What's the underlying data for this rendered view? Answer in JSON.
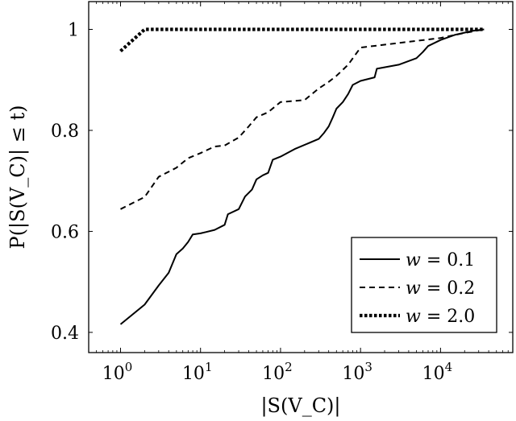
{
  "chart_data": {
    "type": "line",
    "xscale": "log",
    "xlim": [
      0.4,
      80000
    ],
    "ylim": [
      0.36,
      1.055
    ],
    "grid": false,
    "xlabel": "|S(V_C)|",
    "ylabel": "P(|S(V_C)| ≤ t)",
    "x_ticks": [
      {
        "value": 1,
        "base": "10",
        "exp": "0"
      },
      {
        "value": 10,
        "base": "10",
        "exp": "1"
      },
      {
        "value": 100,
        "base": "10",
        "exp": "2"
      },
      {
        "value": 1000,
        "base": "10",
        "exp": "3"
      },
      {
        "value": 10000,
        "base": "10",
        "exp": "4"
      }
    ],
    "y_ticks": [
      {
        "value": 0.4,
        "label": "0.4"
      },
      {
        "value": 0.6,
        "label": "0.6"
      },
      {
        "value": 0.8,
        "label": "0.8"
      },
      {
        "value": 1.0,
        "label": "1"
      }
    ],
    "legend": {
      "position": "bottom-right",
      "entries": [
        {
          "series": 0,
          "prefix": "w",
          "value": "= 0.1"
        },
        {
          "series": 1,
          "prefix": "w",
          "value": "= 0.2"
        },
        {
          "series": 2,
          "prefix": "w",
          "value": "= 2.0"
        }
      ]
    },
    "series": [
      {
        "name": "w = 0.1",
        "style": "solid",
        "points": [
          [
            1,
            0.416
          ],
          [
            2,
            0.455
          ],
          [
            3,
            0.493
          ],
          [
            4,
            0.518
          ],
          [
            5,
            0.555
          ],
          [
            6,
            0.566
          ],
          [
            7,
            0.579
          ],
          [
            8,
            0.594
          ],
          [
            10,
            0.596
          ],
          [
            15,
            0.603
          ],
          [
            20,
            0.613
          ],
          [
            22,
            0.634
          ],
          [
            30,
            0.644
          ],
          [
            36,
            0.669
          ],
          [
            44,
            0.683
          ],
          [
            50,
            0.703
          ],
          [
            60,
            0.711
          ],
          [
            70,
            0.716
          ],
          [
            80,
            0.742
          ],
          [
            100,
            0.748
          ],
          [
            150,
            0.763
          ],
          [
            300,
            0.783
          ],
          [
            350,
            0.795
          ],
          [
            400,
            0.808
          ],
          [
            450,
            0.826
          ],
          [
            500,
            0.843
          ],
          [
            600,
            0.856
          ],
          [
            700,
            0.872
          ],
          [
            800,
            0.89
          ],
          [
            1000,
            0.898
          ],
          [
            1500,
            0.905
          ],
          [
            1600,
            0.922
          ],
          [
            3000,
            0.93
          ],
          [
            5000,
            0.943
          ],
          [
            6000,
            0.955
          ],
          [
            7000,
            0.967
          ],
          [
            10000,
            0.979
          ],
          [
            15000,
            0.989
          ],
          [
            25000,
            0.997
          ],
          [
            35000,
            1.0
          ]
        ]
      },
      {
        "name": "w = 0.2",
        "style": "dashed",
        "points": [
          [
            1,
            0.644
          ],
          [
            2,
            0.668
          ],
          [
            3,
            0.708
          ],
          [
            5,
            0.726
          ],
          [
            7,
            0.745
          ],
          [
            10,
            0.755
          ],
          [
            15,
            0.768
          ],
          [
            20,
            0.77
          ],
          [
            30,
            0.786
          ],
          [
            40,
            0.808
          ],
          [
            50,
            0.826
          ],
          [
            70,
            0.836
          ],
          [
            100,
            0.856
          ],
          [
            200,
            0.86
          ],
          [
            300,
            0.883
          ],
          [
            400,
            0.896
          ],
          [
            500,
            0.908
          ],
          [
            700,
            0.93
          ],
          [
            1000,
            0.964
          ],
          [
            3000,
            0.973
          ],
          [
            10000,
            0.983
          ],
          [
            20000,
            0.993
          ],
          [
            35000,
            1.0
          ]
        ]
      },
      {
        "name": "w = 2.0",
        "style": "dotted",
        "points": [
          [
            1,
            0.957
          ],
          [
            2,
            1.0
          ],
          [
            35000,
            1.0
          ]
        ]
      }
    ]
  }
}
